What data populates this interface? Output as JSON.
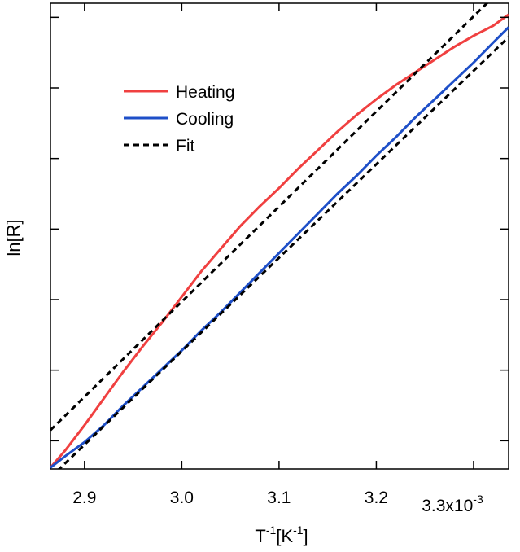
{
  "chart_data": {
    "type": "line",
    "xlabel": {
      "main": "T",
      "sup": "-1",
      "bracket_open": "[K",
      "bracket_sup": "-1",
      "bracket_close": "]"
    },
    "ylabel": "ln[R]",
    "x_tick_labels": [
      "2.9",
      "3.0",
      "3.1",
      "3.2",
      "3.3x10"
    ],
    "x_tick_values": [
      2.9,
      3.0,
      3.1,
      3.2,
      3.3
    ],
    "x_exponent_label": "-3",
    "xlim": [
      2.865,
      3.336
    ],
    "ylim": [
      0.0,
      6.6
    ],
    "y_tick_values": [
      0.4,
      1.4,
      2.4,
      3.4,
      4.4,
      5.4,
      6.4
    ],
    "y_tick_labels_visible": false,
    "grid": false,
    "legend_position": "top-left",
    "series": [
      {
        "name": "Heating",
        "color": "#f04040",
        "style": "solid",
        "x": [
          2.865,
          2.88,
          2.9,
          2.92,
          2.94,
          2.96,
          2.98,
          3.0,
          3.02,
          3.04,
          3.06,
          3.08,
          3.1,
          3.12,
          3.14,
          3.16,
          3.18,
          3.2,
          3.22,
          3.24,
          3.26,
          3.28,
          3.3,
          3.32,
          3.336
        ],
        "y": [
          0.02,
          0.26,
          0.62,
          1.0,
          1.38,
          1.74,
          2.08,
          2.44,
          2.8,
          3.12,
          3.44,
          3.72,
          3.98,
          4.26,
          4.52,
          4.78,
          5.02,
          5.24,
          5.44,
          5.62,
          5.8,
          5.98,
          6.14,
          6.28,
          6.44
        ]
      },
      {
        "name": "Cooling",
        "color": "#1e4fc8",
        "style": "solid",
        "x": [
          2.865,
          2.88,
          2.9,
          2.92,
          2.94,
          2.96,
          2.98,
          3.0,
          3.02,
          3.04,
          3.06,
          3.08,
          3.1,
          3.12,
          3.14,
          3.16,
          3.18,
          3.2,
          3.22,
          3.24,
          3.26,
          3.28,
          3.3,
          3.32,
          3.336
        ],
        "y": [
          0.02,
          0.18,
          0.38,
          0.62,
          0.9,
          1.16,
          1.42,
          1.68,
          1.96,
          2.22,
          2.5,
          2.78,
          3.06,
          3.34,
          3.62,
          3.9,
          4.16,
          4.44,
          4.7,
          4.98,
          5.24,
          5.5,
          5.76,
          6.04,
          6.26
        ]
      },
      {
        "name": "Fit",
        "color": "#000000",
        "style": "dashed",
        "x": [
          2.865,
          3.336
        ],
        "y": [
          0.55,
          6.9
        ]
      },
      {
        "name": "",
        "color": "#000000",
        "style": "dashed",
        "x": [
          2.865,
          3.336
        ],
        "y": [
          -0.12,
          6.12
        ]
      }
    ]
  }
}
